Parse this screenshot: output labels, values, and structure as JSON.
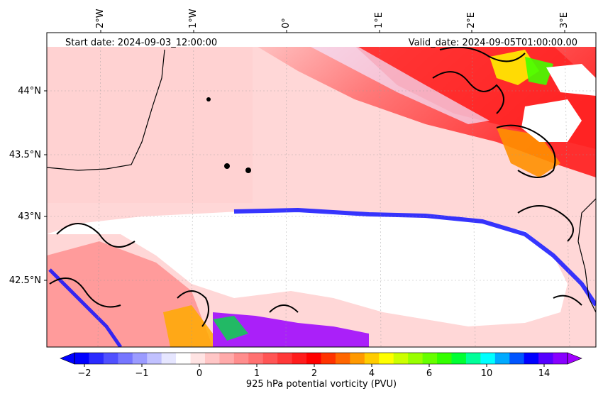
{
  "map": {
    "projection": "lat-lon",
    "lon_ticks": [
      "2°W",
      "1°W",
      "0°",
      "1°E",
      "2°E",
      "3°E"
    ],
    "lat_ticks": [
      "44°N",
      "43.5°N",
      "43°N",
      "42.5°N"
    ],
    "start_label": "Start date: 2024-09-03_12:00:00",
    "valid_label": "Valid_date: 2024-09-05T01:00:00.00",
    "field": "925 hPa potential vorticity",
    "masked_region": "terrain above 925 hPa (Pyrenees) shown white"
  },
  "colorbar": {
    "label": "925 hPa potential vorticity (PVU)",
    "tick_labels": [
      "−2",
      "−1",
      "0",
      "1",
      "2",
      "4",
      "6",
      "10",
      "14"
    ],
    "extend": "both",
    "colors": [
      "#0000ff",
      "#2a2aff",
      "#5050ff",
      "#7676ff",
      "#9b9bff",
      "#c1c1ff",
      "#e6e6ff",
      "#ffffff",
      "#ffe3e3",
      "#ffc6c6",
      "#ffaaaa",
      "#ff8d8d",
      "#ff7171",
      "#ff5555",
      "#ff3838",
      "#ff1c1c",
      "#ff0000",
      "#ff3300",
      "#ff6600",
      "#ff9900",
      "#ffcc00",
      "#ffff00",
      "#ccff00",
      "#99ff00",
      "#66ff00",
      "#33ff00",
      "#00ff33",
      "#00ff99",
      "#00ffff",
      "#00aaff",
      "#0055ff",
      "#0000ff",
      "#5500ff",
      "#8800ff"
    ],
    "min_color": "#0000ff",
    "max_color": "#a000ff"
  },
  "colors": {
    "negative": "#0000ff",
    "positive": "#ff0000",
    "masked": "#ffffff",
    "contour": "#000000"
  }
}
